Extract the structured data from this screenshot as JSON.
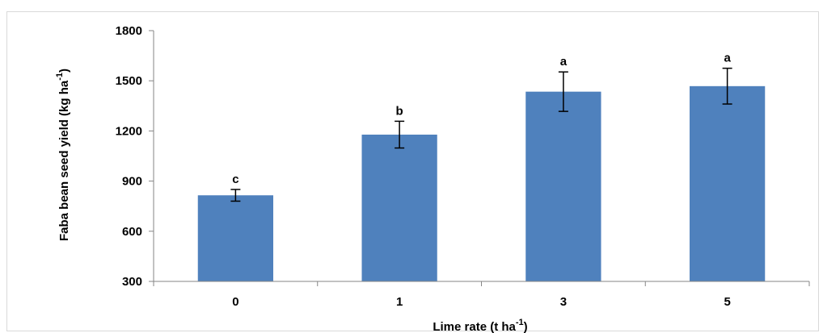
{
  "chart_data": {
    "type": "bar",
    "xlabel": "Lime rate (t ha",
    "xlabel_sup": "-1",
    "xlabel_end": ")",
    "ylabel": "Faba bean seed yield (kg ha",
    "ylabel_sup": "-1",
    "ylabel_end": ")",
    "ylim": [
      300,
      1800
    ],
    "yticks": [
      300,
      600,
      900,
      1200,
      1500,
      1800
    ],
    "categories": [
      "0",
      "1",
      "3",
      "5"
    ],
    "values": [
      815,
      1178,
      1435,
      1468
    ],
    "errors": [
      35,
      80,
      118,
      107
    ],
    "significance": [
      "c",
      "b",
      "a",
      "a"
    ],
    "bar_color": "#4f81bd",
    "grid": false,
    "legend": "none"
  }
}
